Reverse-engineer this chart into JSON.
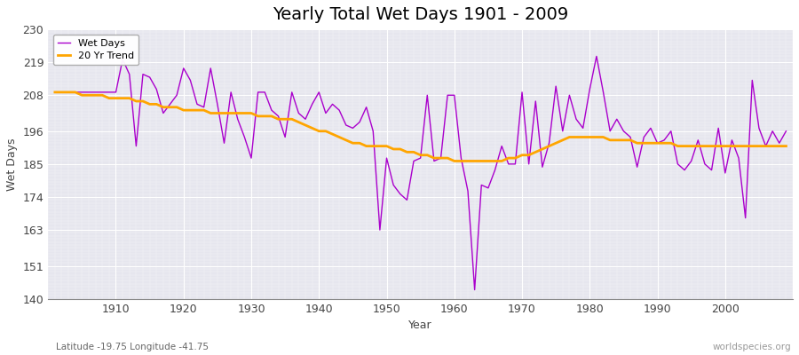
{
  "title": "Yearly Total Wet Days 1901 - 2009",
  "xlabel": "Year",
  "ylabel": "Wet Days",
  "subtitle_left": "Latitude -19.75 Longitude -41.75",
  "subtitle_right": "worldspecies.org",
  "line_color": "#AA00CC",
  "trend_color": "#FFA500",
  "bg_color": "#E6E6EE",
  "ylim": [
    140,
    230
  ],
  "yticks": [
    140,
    151,
    163,
    174,
    185,
    196,
    208,
    219,
    230
  ],
  "xticks": [
    1910,
    1920,
    1930,
    1940,
    1950,
    1960,
    1970,
    1980,
    1990,
    2000
  ],
  "xlim": [
    1900,
    2010
  ],
  "years": [
    1901,
    1902,
    1903,
    1904,
    1905,
    1906,
    1907,
    1908,
    1909,
    1910,
    1911,
    1912,
    1913,
    1914,
    1915,
    1916,
    1917,
    1918,
    1919,
    1920,
    1921,
    1922,
    1923,
    1924,
    1925,
    1926,
    1927,
    1928,
    1929,
    1930,
    1931,
    1932,
    1933,
    1934,
    1935,
    1936,
    1937,
    1938,
    1939,
    1940,
    1941,
    1942,
    1943,
    1944,
    1945,
    1946,
    1947,
    1948,
    1949,
    1950,
    1951,
    1952,
    1953,
    1954,
    1955,
    1956,
    1957,
    1958,
    1959,
    1960,
    1961,
    1962,
    1963,
    1964,
    1965,
    1966,
    1967,
    1968,
    1969,
    1970,
    1971,
    1972,
    1973,
    1974,
    1975,
    1976,
    1977,
    1978,
    1979,
    1980,
    1981,
    1982,
    1983,
    1984,
    1985,
    1986,
    1987,
    1988,
    1989,
    1990,
    1991,
    1992,
    1993,
    1994,
    1995,
    1996,
    1997,
    1998,
    1999,
    2000,
    2001,
    2002,
    2003,
    2004,
    2005,
    2006,
    2007,
    2008,
    2009
  ],
  "wet_days": [
    209,
    209,
    209,
    209,
    209,
    209,
    209,
    209,
    209,
    209,
    220,
    215,
    191,
    215,
    214,
    210,
    202,
    205,
    208,
    217,
    213,
    205,
    204,
    217,
    205,
    192,
    209,
    200,
    194,
    187,
    209,
    209,
    203,
    201,
    194,
    209,
    202,
    200,
    205,
    209,
    202,
    205,
    203,
    198,
    197,
    199,
    204,
    196,
    163,
    187,
    178,
    175,
    173,
    186,
    187,
    208,
    186,
    187,
    208,
    208,
    187,
    176,
    143,
    178,
    177,
    183,
    191,
    185,
    185,
    209,
    185,
    206,
    184,
    192,
    211,
    196,
    208,
    200,
    197,
    210,
    221,
    209,
    196,
    200,
    196,
    194,
    184,
    194,
    197,
    192,
    193,
    196,
    185,
    183,
    186,
    193,
    185,
    183,
    197,
    182,
    193,
    187,
    167,
    213,
    197,
    191,
    196,
    192,
    196
  ],
  "trend_years": [
    1901,
    1902,
    1903,
    1904,
    1905,
    1906,
    1907,
    1908,
    1909,
    1910,
    1911,
    1912,
    1913,
    1914,
    1915,
    1916,
    1917,
    1918,
    1919,
    1920,
    1921,
    1922,
    1923,
    1924,
    1925,
    1926,
    1927,
    1928,
    1929,
    1930,
    1931,
    1932,
    1933,
    1934,
    1935,
    1936,
    1937,
    1938,
    1939,
    1940,
    1941,
    1942,
    1943,
    1944,
    1945,
    1946,
    1947,
    1948,
    1949,
    1950,
    1951,
    1952,
    1953,
    1954,
    1955,
    1956,
    1957,
    1958,
    1959,
    1960,
    1961,
    1962,
    1963,
    1964,
    1965,
    1966,
    1967,
    1968,
    1969,
    1970,
    1971,
    1972,
    1973,
    1974,
    1975,
    1976,
    1977,
    1978,
    1979,
    1980,
    1981,
    1982,
    1983,
    1984,
    1985,
    1986,
    1987,
    1988,
    1989,
    1990,
    1991,
    1992,
    1993,
    1994,
    1995,
    1996,
    1997,
    1998,
    1999,
    2000,
    2001,
    2002,
    2003,
    2004,
    2005,
    2006,
    2007,
    2008,
    2009
  ],
  "trend_values": [
    209,
    209,
    209,
    209,
    208,
    208,
    208,
    208,
    207,
    207,
    207,
    207,
    206,
    206,
    205,
    205,
    204,
    204,
    204,
    203,
    203,
    203,
    203,
    202,
    202,
    202,
    202,
    202,
    202,
    202,
    201,
    201,
    201,
    200,
    200,
    200,
    199,
    198,
    197,
    196,
    196,
    195,
    194,
    193,
    192,
    192,
    191,
    191,
    191,
    191,
    190,
    190,
    189,
    189,
    188,
    188,
    187,
    187,
    187,
    186,
    186,
    186,
    186,
    186,
    186,
    186,
    186,
    187,
    187,
    188,
    188,
    189,
    190,
    191,
    192,
    193,
    194,
    194,
    194,
    194,
    194,
    194,
    193,
    193,
    193,
    193,
    192,
    192,
    192,
    192,
    192,
    192,
    191,
    191,
    191,
    191,
    191,
    191,
    191,
    191,
    191,
    191,
    191,
    191,
    191,
    191,
    191,
    191,
    191
  ]
}
